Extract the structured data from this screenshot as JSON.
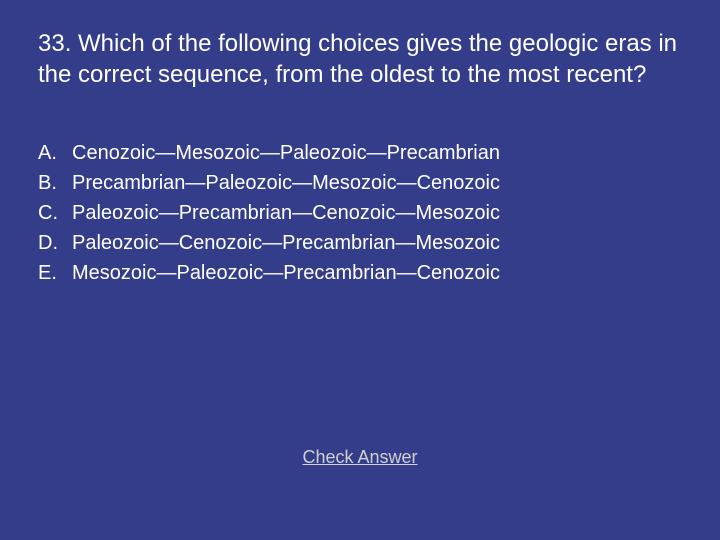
{
  "background_color": "#333d8a",
  "text_color": "#ffffff",
  "link_color": "#d0d0d0",
  "question": {
    "number": "33.",
    "text": "33. Which of the following choices gives the geologic eras in the correct sequence, from the oldest to the most recent?",
    "fontsize": 24
  },
  "choices": {
    "fontsize": 20,
    "letters": [
      "A.",
      "B.",
      "C.",
      "D.",
      "E."
    ],
    "options": [
      "Cenozoic—Mesozoic—Paleozoic—Precambrian",
      "Precambrian—Paleozoic—Mesozoic—Cenozoic",
      "Paleozoic—Precambrian—Cenozoic—Mesozoic",
      "Paleozoic—Cenozoic—Precambrian—Mesozoic",
      "Mesozoic—Paleozoic—Precambrian—Cenozoic"
    ]
  },
  "check_answer": {
    "label": "Check Answer"
  }
}
